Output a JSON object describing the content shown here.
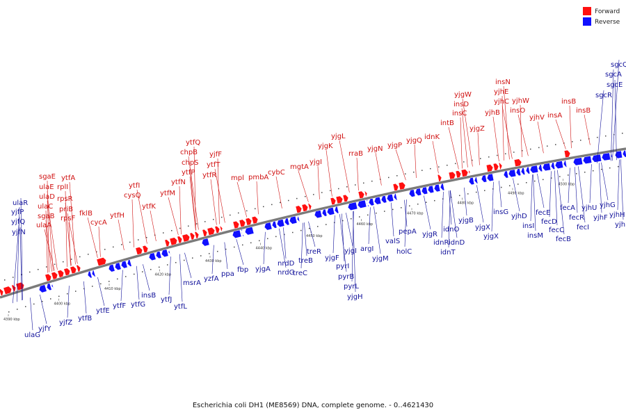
{
  "colors": {
    "forward": "#ff1010",
    "reverse": "#1010ff",
    "axis": "#7a7a7a",
    "forward_label": "#d01010",
    "reverse_label": "#10109a"
  },
  "legend": {
    "forward": "Forward",
    "reverse": "Reverse"
  },
  "caption": "Escherichia coli DH1 (ME8569) DNA, complete genome. - 0..4621430",
  "scale": {
    "unit": "kbp",
    "ticks": [
      4390,
      4400,
      4410,
      4420,
      4430,
      4440,
      4450,
      4460,
      4470,
      4480,
      4490,
      4500
    ]
  },
  "forward_labels": [
    "sgaE",
    "ulaE",
    "ulaD",
    "ulaC",
    "sgaB",
    "ulaA",
    "rplI",
    "rpsR",
    "priB",
    "rpsF",
    "ytfA",
    "fklB",
    "cycA",
    "ytfH",
    "ytfI",
    "cysQ",
    "ytfK",
    "ytfM",
    "ytfN",
    "chpS",
    "chpB",
    "ytfQ",
    "ytfP",
    "ytfT",
    "yjfF",
    "ytfR",
    "mpl",
    "pmbA",
    "cybC",
    "mgtA",
    "yjgI",
    "yjgK",
    "yjgL",
    "rraB",
    "yjgN",
    "yjgP",
    "yjgQ",
    "idnK",
    "intB",
    "insC",
    "insD",
    "yjgW",
    "yjgZ",
    "yjhB",
    "yjhC",
    "yjhE",
    "insN",
    "insO",
    "yjhW",
    "yjhV",
    "insA",
    "insB",
    "insB"
  ],
  "reverse_labels": [
    "ulaR",
    "yjfP",
    "yjfQ",
    "yjfN",
    "ulaG",
    "yjfY",
    "yjfZ",
    "ytfB",
    "ytfE",
    "ytfF",
    "ytfG",
    "insB",
    "ytfJ",
    "ytfL",
    "msrA",
    "yzfA",
    "ppa",
    "fbp",
    "yjgA",
    "nrdD",
    "nrdG",
    "treC",
    "treB",
    "treR",
    "yjgF",
    "pyrI",
    "pyrB",
    "pyrL",
    "yjgH",
    "yjgI",
    "argI",
    "valS",
    "yjgM",
    "holC",
    "pepA",
    "yjgR",
    "idnR",
    "idnO",
    "idnD",
    "idnT",
    "yjgB",
    "yjgX",
    "yjgX",
    "insG",
    "yjhD",
    "insI",
    "insM",
    "fecE",
    "fecD",
    "fecC",
    "fecB",
    "fecA",
    "fecR",
    "fecI",
    "yjhU",
    "yjhF",
    "yjhG",
    "yjhH",
    "yjhI",
    "sgcR",
    "sgcE",
    "sgcA",
    "sgcQ"
  ]
}
